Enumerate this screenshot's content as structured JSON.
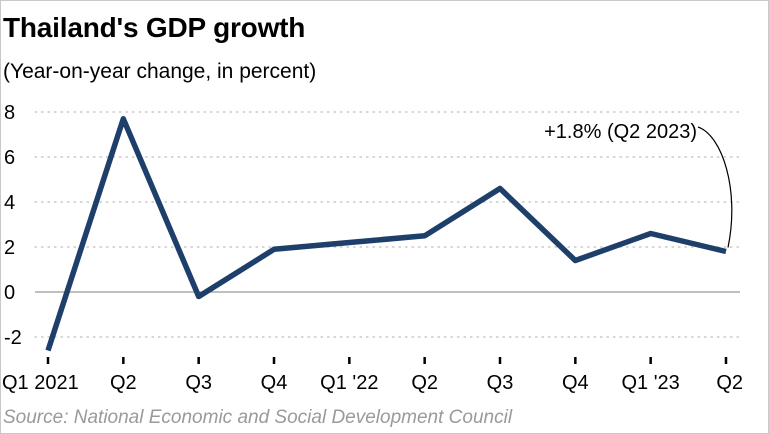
{
  "chart_data": {
    "type": "line",
    "title": "Thailand's GDP growth",
    "subtitle": "(Year-on-year change, in percent)",
    "source": "Source: National Economic and Social Development Council",
    "categories": [
      "Q1 2021",
      "Q2",
      "Q3",
      "Q4",
      "Q1 '22",
      "Q2",
      "Q3",
      "Q4",
      "Q1 '23",
      "Q2"
    ],
    "series": [
      {
        "values": [
          -2.6,
          7.7,
          -0.2,
          1.9,
          2.2,
          2.5,
          4.6,
          1.4,
          2.6,
          1.8
        ]
      }
    ],
    "ylim": [
      -2,
      8
    ],
    "yticks": [
      -2,
      0,
      2,
      4,
      6,
      8
    ],
    "grid": true,
    "annotation": {
      "text": "+1.8% (Q2 2023)",
      "point_index": 9
    },
    "colors": {
      "line": "#1f3f6b",
      "grid": "#bdbdbd",
      "zero_line": "#999999",
      "source": "#9a9a9a"
    }
  }
}
